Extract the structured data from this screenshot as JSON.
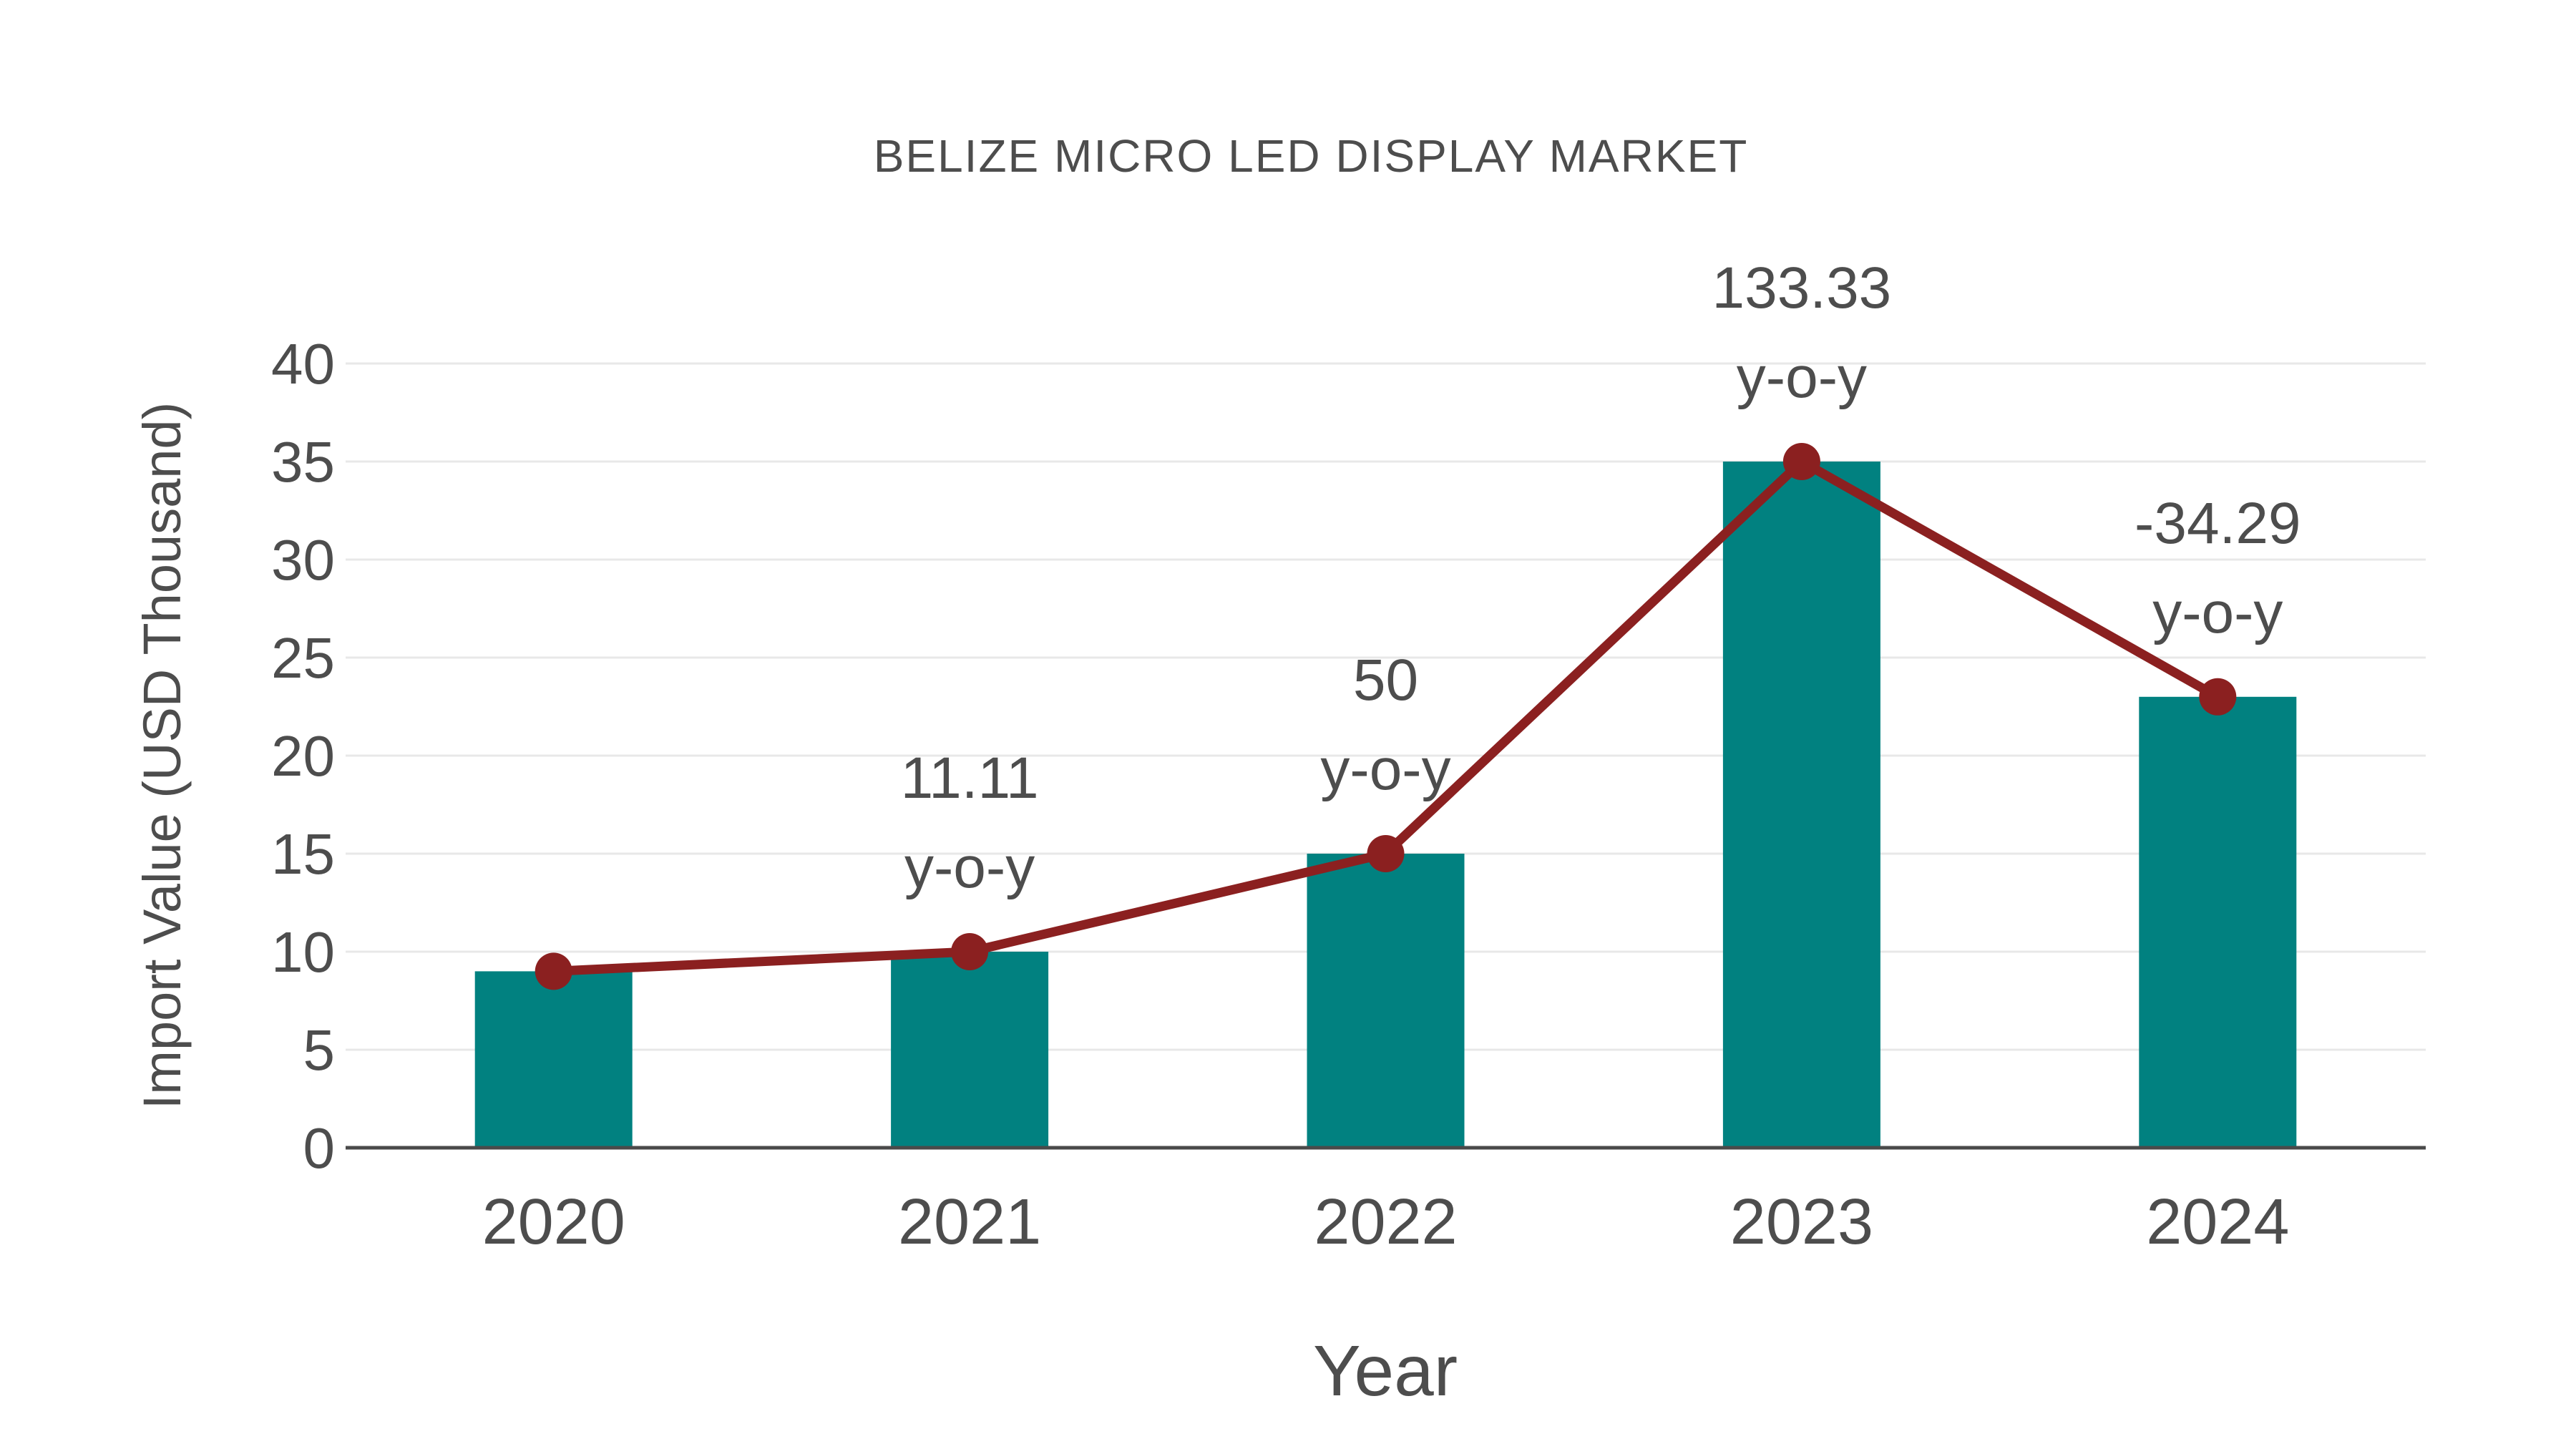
{
  "chart_data": {
    "type": "bar",
    "title": "BELIZE MICRO LED DISPLAY MARKET",
    "xlabel": "Year",
    "ylabel": "Import Value (USD Thousand)",
    "categories": [
      "2020",
      "2021",
      "2022",
      "2023",
      "2024"
    ],
    "series": [
      {
        "name": "import-value-bars",
        "type": "bar",
        "values": [
          9,
          10,
          15,
          35,
          23
        ]
      },
      {
        "name": "import-value-trend-line",
        "type": "line",
        "values": [
          9,
          10,
          15,
          35,
          23
        ]
      }
    ],
    "annotations": [
      {
        "category": "2021",
        "line1": "11.11",
        "line2": "y-o-y"
      },
      {
        "category": "2022",
        "line1": "50",
        "line2": "y-o-y"
      },
      {
        "category": "2023",
        "line1": "133.33",
        "line2": "y-o-y"
      },
      {
        "category": "2024",
        "line1": "-34.29",
        "line2": "y-o-y"
      }
    ],
    "ylim": [
      0,
      40
    ],
    "yticks": [
      0,
      5,
      10,
      15,
      20,
      25,
      30,
      35,
      40
    ],
    "grid": true,
    "legend_position": "none",
    "colors": {
      "bar": "#018180",
      "line": "#8b2020",
      "marker": "#8b2020",
      "tick_text": "#4d4d4d",
      "annotation_text": "#444444",
      "grid": "#e8e8e8",
      "axis_line": "#4a4a4a",
      "background": "#ffffff"
    }
  }
}
